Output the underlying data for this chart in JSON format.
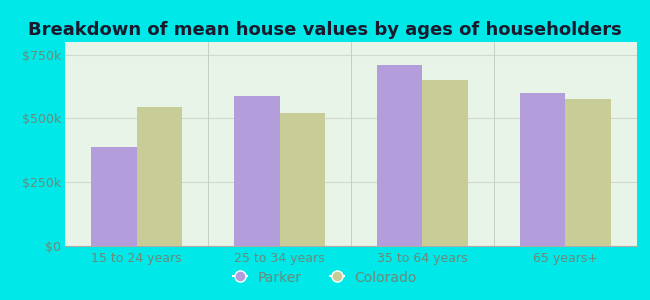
{
  "title": "Breakdown of mean house values by ages of householders",
  "categories": [
    "15 to 24 years",
    "25 to 34 years",
    "35 to 64 years",
    "65 years+"
  ],
  "parker_values": [
    390000,
    590000,
    710000,
    600000
  ],
  "colorado_values": [
    545000,
    520000,
    650000,
    575000
  ],
  "parker_color": "#b39ddb",
  "colorado_color": "#c8cc96",
  "background_color": "#00e8e8",
  "plot_bg": "#e0f0e0",
  "ylim": [
    0,
    800000
  ],
  "yticks": [
    0,
    250000,
    500000,
    750000
  ],
  "ytick_labels": [
    "$0",
    "$250k",
    "$500k",
    "$750k"
  ],
  "legend_labels": [
    "Parker",
    "Colorado"
  ],
  "bar_width": 0.32,
  "title_fontsize": 13,
  "tick_fontsize": 9,
  "legend_fontsize": 10,
  "grid_color": "#d0d8d0",
  "tick_color": "#6a8a7a",
  "title_color": "#1a1a2e"
}
